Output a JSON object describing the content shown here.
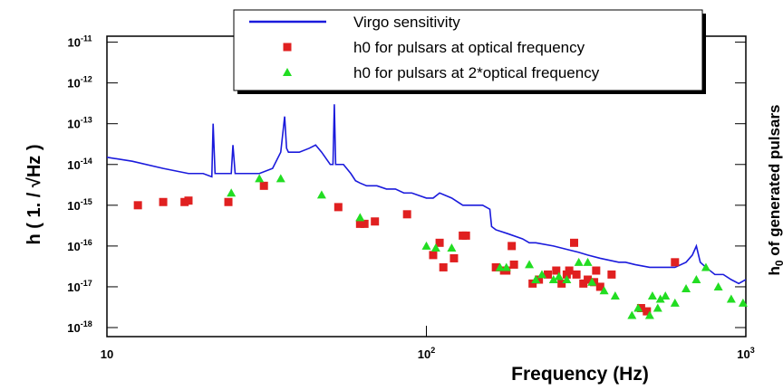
{
  "chart_data": {
    "type": "scatter",
    "log_x": true,
    "log_y": true,
    "xlabel": "Frequency (Hz)",
    "ylabel": "h  ( 1. / √Hz )",
    "y2label": "h0 of generated pulsars",
    "xlim": [
      10,
      1000
    ],
    "ylim": [
      6e-19,
      1.4e-11
    ],
    "xticks": [
      10,
      {
        "value": 100,
        "label": "102"
      },
      {
        "value": 1000,
        "label": "103"
      }
    ],
    "yticks": [
      {
        "value": 1e-18,
        "label": "10-18"
      },
      {
        "value": 1e-17,
        "label": "10-17"
      },
      {
        "value": 1e-16,
        "label": "10-16"
      },
      {
        "value": 1e-15,
        "label": "10-15"
      },
      {
        "value": 1e-14,
        "label": "10-14"
      },
      {
        "value": 1e-13,
        "label": "10-13"
      },
      {
        "value": 1e-12,
        "label": "10-12"
      },
      {
        "value": 1e-11,
        "label": "10-11"
      }
    ],
    "legend_position": "top",
    "series": [
      {
        "name": "Virgo sensitivity",
        "type": "line",
        "color": "#1a1adc",
        "x": [
          10,
          12,
          15,
          18,
          20,
          21.3,
          21.5,
          21.8,
          23,
          24.5,
          24.8,
          25.2,
          28,
          30,
          33,
          35,
          36,
          36.5,
          37,
          40,
          43,
          45,
          47,
          50,
          51,
          51.5,
          52,
          55,
          58,
          60,
          62,
          65,
          70,
          75,
          80,
          85,
          90,
          100,
          105,
          110,
          120,
          130,
          140,
          150,
          158,
          160,
          165,
          180,
          200,
          210,
          220,
          250,
          280,
          300,
          320,
          350,
          400,
          420,
          450,
          500,
          550,
          600,
          650,
          680,
          700,
          720,
          750,
          800,
          850,
          900,
          950,
          1000
        ],
        "values": [
          1.5e-14,
          1.2e-14,
          8e-15,
          6e-15,
          6e-15,
          5e-15,
          1e-13,
          6e-15,
          6e-15,
          6e-15,
          3e-14,
          6e-15,
          6e-15,
          6e-15,
          8e-15,
          2e-14,
          1.5e-13,
          2.5e-14,
          2e-14,
          2e-14,
          2.5e-14,
          3e-14,
          2e-14,
          1e-14,
          1e-14,
          3e-13,
          1e-14,
          1e-14,
          6e-15,
          4e-15,
          3.5e-15,
          3e-15,
          3e-15,
          2.5e-15,
          2.5e-15,
          2e-15,
          2e-15,
          1.5e-15,
          1.5e-15,
          2e-15,
          1.5e-15,
          1e-15,
          1e-15,
          1e-15,
          8e-16,
          3e-16,
          2.5e-16,
          2e-16,
          1.5e-16,
          1.2e-16,
          1.2e-16,
          1e-16,
          8e-17,
          7e-17,
          6e-17,
          5e-17,
          4e-17,
          4e-17,
          3.5e-17,
          3e-17,
          3e-17,
          3e-17,
          4e-17,
          6e-17,
          1e-16,
          4e-17,
          3e-17,
          2e-17,
          2e-17,
          1.5e-17,
          1.2e-17,
          1.5e-17
        ]
      },
      {
        "name": "h0 for pulsars at optical frequency",
        "type": "square",
        "color": "#e02020",
        "x": [
          12.5,
          15,
          17.5,
          18,
          24,
          31,
          53,
          62,
          64,
          69,
          87,
          105,
          110,
          113,
          122,
          130,
          133,
          165,
          175,
          178,
          185,
          188,
          215,
          225,
          240,
          255,
          265,
          275,
          280,
          290,
          295,
          310,
          320,
          335,
          340,
          350,
          380,
          470,
          490,
          600
        ],
        "values": [
          1e-15,
          1.2e-15,
          1.2e-15,
          1.3e-15,
          1.2e-15,
          3e-15,
          9e-16,
          3.5e-16,
          3.5e-16,
          4e-16,
          6e-16,
          6e-17,
          1.2e-16,
          3e-17,
          5e-17,
          1.8e-16,
          1.8e-16,
          3e-17,
          2.5e-17,
          2.5e-17,
          1e-16,
          3.5e-17,
          1.2e-17,
          1.5e-17,
          2e-17,
          2.5e-17,
          1.2e-17,
          2e-17,
          2.5e-17,
          1.2e-16,
          2e-17,
          1.2e-17,
          1.5e-17,
          1.3e-17,
          2.5e-17,
          1e-17,
          2e-17,
          3e-18,
          2.5e-18,
          4e-17
        ]
      },
      {
        "name": "h0 for pulsars at 2*optical frequency",
        "type": "triangle",
        "color": "#22dd22",
        "x": [
          24.5,
          30,
          35,
          47,
          62,
          100,
          107,
          120,
          170,
          178,
          210,
          220,
          230,
          250,
          260,
          275,
          300,
          320,
          330,
          360,
          390,
          440,
          460,
          500,
          510,
          530,
          540,
          560,
          600,
          650,
          700,
          750,
          820,
          900,
          980
        ],
        "values": [
          2e-15,
          4.5e-15,
          4.5e-15,
          1.8e-15,
          5e-16,
          1e-16,
          9e-17,
          9e-17,
          3e-17,
          3e-17,
          3.5e-17,
          1.5e-17,
          2e-17,
          1.5e-17,
          1.8e-17,
          1.5e-17,
          4e-17,
          4e-17,
          1.3e-17,
          8e-18,
          6e-18,
          2e-18,
          3e-18,
          2e-18,
          6e-18,
          3e-18,
          5e-18,
          6e-18,
          4e-18,
          9e-18,
          1.5e-17,
          3e-17,
          1e-17,
          5e-18,
          4e-18
        ]
      }
    ]
  }
}
